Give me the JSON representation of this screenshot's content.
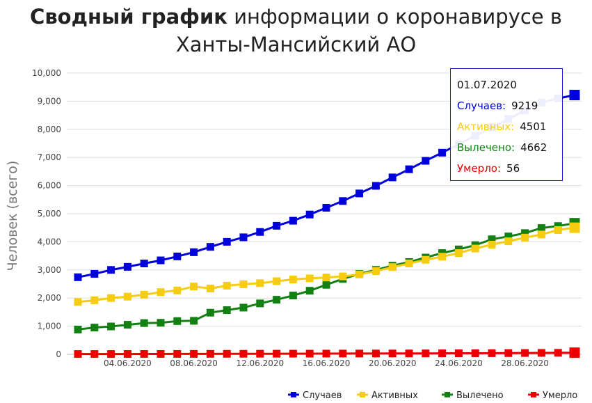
{
  "title": {
    "bold": "Сводный график",
    "rest": "информации о коронавирусе в",
    "line2": "Ханты-Мансийский АО"
  },
  "chart_data": {
    "type": "line",
    "ylabel": "Человек (всего)",
    "xlabel": "",
    "ylim": [
      0,
      10000
    ],
    "y_ticks": [
      "0",
      "1,000",
      "2,000",
      "3,000",
      "4,000",
      "5,000",
      "6,000",
      "7,000",
      "8,000",
      "9,000",
      "10,000"
    ],
    "x": [
      "01.06.2020",
      "02.06.2020",
      "03.06.2020",
      "04.06.2020",
      "05.06.2020",
      "06.06.2020",
      "07.06.2020",
      "08.06.2020",
      "09.06.2020",
      "10.06.2020",
      "11.06.2020",
      "12.06.2020",
      "13.06.2020",
      "14.06.2020",
      "15.06.2020",
      "16.06.2020",
      "17.06.2020",
      "18.06.2020",
      "19.06.2020",
      "20.06.2020",
      "21.06.2020",
      "22.06.2020",
      "23.06.2020",
      "24.06.2020",
      "25.06.2020",
      "26.06.2020",
      "27.06.2020",
      "28.06.2020",
      "29.06.2020",
      "30.06.2020",
      "01.07.2020"
    ],
    "x_tick_labels": [
      "04.06.2020",
      "08.06.2020",
      "12.06.2020",
      "16.06.2020",
      "20.06.2020",
      "24.06.2020",
      "28.06.2020"
    ],
    "grid": true,
    "legend_position": "bottom-right",
    "series": [
      {
        "name": "Случаев",
        "color": "#0000dd",
        "values": [
          2740,
          2860,
          3000,
          3110,
          3230,
          3340,
          3480,
          3630,
          3820,
          4000,
          4160,
          4350,
          4570,
          4750,
          4970,
          5210,
          5450,
          5720,
          5990,
          6290,
          6580,
          6880,
          7170,
          7470,
          7770,
          8070,
          8370,
          8670,
          8950,
          9100,
          9219
        ]
      },
      {
        "name": "Активных",
        "color": "#f5cc10",
        "values": [
          1860,
          1920,
          2000,
          2050,
          2120,
          2210,
          2270,
          2410,
          2340,
          2440,
          2490,
          2530,
          2600,
          2660,
          2700,
          2730,
          2770,
          2840,
          2960,
          3100,
          3230,
          3360,
          3470,
          3600,
          3760,
          3900,
          4020,
          4150,
          4260,
          4420,
          4501
        ]
      },
      {
        "name": "Вылечено",
        "color": "#138013",
        "values": [
          880,
          950,
          990,
          1050,
          1110,
          1120,
          1180,
          1190,
          1480,
          1570,
          1660,
          1810,
          1940,
          2090,
          2260,
          2470,
          2680,
          2860,
          3000,
          3150,
          3280,
          3440,
          3600,
          3730,
          3880,
          4090,
          4190,
          4310,
          4490,
          4560,
          4662
        ]
      },
      {
        "name": "Умерло",
        "color": "#ee0000",
        "values": [
          10,
          10,
          10,
          11,
          12,
          13,
          14,
          15,
          16,
          17,
          18,
          20,
          21,
          22,
          23,
          25,
          26,
          27,
          28,
          29,
          30,
          32,
          34,
          36,
          38,
          40,
          43,
          46,
          49,
          52,
          56
        ]
      }
    ],
    "tooltip": {
      "date": "01.07.2020",
      "rows": [
        {
          "label": "Случаев:",
          "value": "9219",
          "color": "#0000dd"
        },
        {
          "label": "Активных:",
          "value": "4501",
          "color": "#f5cc10"
        },
        {
          "label": "Вылечено:",
          "value": "4662",
          "color": "#138013"
        },
        {
          "label": "Умерло:",
          "value": "56",
          "color": "#ee0000"
        }
      ]
    }
  }
}
